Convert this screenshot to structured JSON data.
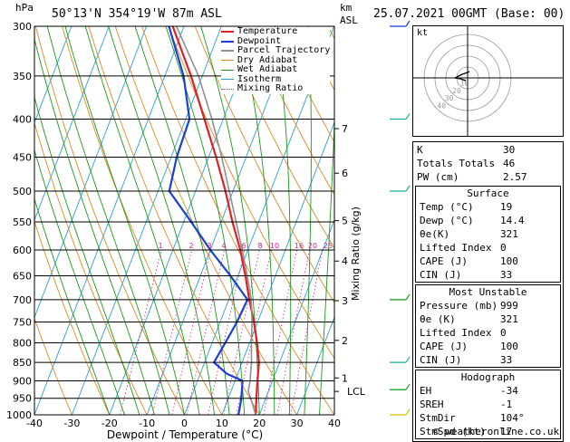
{
  "header": {
    "hpa_label": "hPa",
    "location": "50°13'N  354°19'W  87m  ASL",
    "km_label": "km",
    "asl_label": "ASL",
    "datetime": "25.07.2021  00GMT  (Base: 00)"
  },
  "chart_data": {
    "type": "line",
    "xlabel": "Dewpoint / Temperature (°C)",
    "ylabel_right": "Mixing Ratio (g/kg)",
    "xlim": [
      -40,
      40
    ],
    "x_ticks": [
      -40,
      -30,
      -20,
      -10,
      0,
      10,
      20,
      30,
      40
    ],
    "pressure_levels": [
      300,
      350,
      400,
      450,
      500,
      550,
      600,
      650,
      700,
      750,
      800,
      850,
      900,
      950,
      1000
    ],
    "km_ticks": [
      {
        "label": "7",
        "p": 412
      },
      {
        "label": "6",
        "p": 473
      },
      {
        "label": "5",
        "p": 548
      },
      {
        "label": "4",
        "p": 621
      },
      {
        "label": "3",
        "p": 702
      },
      {
        "label": "2",
        "p": 794
      },
      {
        "label": "1",
        "p": 892
      }
    ],
    "lcl": {
      "label": "LCL",
      "p": 930
    },
    "mixing_ratio_labels": [
      "1",
      "2",
      "3",
      "4",
      "6",
      "8",
      "10",
      "16",
      "20",
      "25"
    ],
    "legend": [
      "Temperature",
      "Dewpoint",
      "Parcel Trajectory",
      "Dry Adiabat",
      "Wet Adiabat",
      "Isotherm",
      "Mixing Ratio"
    ],
    "series": [
      {
        "name": "Temperature",
        "color": "#e02020",
        "points": [
          [
            300,
            -43
          ],
          [
            350,
            -33
          ],
          [
            400,
            -25
          ],
          [
            450,
            -18
          ],
          [
            500,
            -12
          ],
          [
            550,
            -7
          ],
          [
            600,
            -2
          ],
          [
            650,
            2
          ],
          [
            700,
            5.5
          ],
          [
            750,
            9
          ],
          [
            800,
            12
          ],
          [
            850,
            14.5
          ],
          [
            900,
            16
          ],
          [
            950,
            17.5
          ],
          [
            1000,
            19
          ]
        ]
      },
      {
        "name": "Dewpoint",
        "color": "#1a3fd6",
        "points": [
          [
            300,
            -44
          ],
          [
            350,
            -35
          ],
          [
            400,
            -29
          ],
          [
            450,
            -28.5
          ],
          [
            500,
            -27
          ],
          [
            550,
            -18
          ],
          [
            600,
            -10
          ],
          [
            650,
            -2
          ],
          [
            700,
            5
          ],
          [
            750,
            4.5
          ],
          [
            800,
            3.5
          ],
          [
            850,
            2.5
          ],
          [
            880,
            7
          ],
          [
            900,
            12
          ],
          [
            950,
            13.5
          ],
          [
            1000,
            14.4
          ]
        ]
      },
      {
        "name": "Parcel Trajectory",
        "color": "#909090",
        "points": [
          [
            300,
            -42
          ],
          [
            350,
            -31
          ],
          [
            400,
            -23
          ],
          [
            450,
            -16.5
          ],
          [
            500,
            -11
          ],
          [
            550,
            -6
          ],
          [
            600,
            -1.5
          ],
          [
            650,
            2.5
          ],
          [
            700,
            6
          ],
          [
            750,
            8.5
          ],
          [
            800,
            10.5
          ],
          [
            850,
            12.5
          ],
          [
            900,
            14
          ],
          [
            930,
            14.6
          ],
          [
            950,
            16
          ],
          [
            1000,
            19
          ]
        ]
      }
    ]
  },
  "hodograph": {
    "label": "kt",
    "rings": [
      "10",
      "20",
      "30",
      "40"
    ]
  },
  "indices": [
    {
      "label": "K",
      "value": "30"
    },
    {
      "label": "Totals Totals",
      "value": "46"
    },
    {
      "label": "PW (cm)",
      "value": "2.57"
    }
  ],
  "surface": {
    "title": "Surface",
    "rows": [
      {
        "label": "Temp (°C)",
        "value": "19"
      },
      {
        "label": "Dewp (°C)",
        "value": "14.4"
      },
      {
        "label": "θe(K)",
        "value": "321"
      },
      {
        "label": "Lifted Index",
        "value": "0"
      },
      {
        "label": "CAPE (J)",
        "value": "100"
      },
      {
        "label": "CIN (J)",
        "value": "33"
      }
    ]
  },
  "most_unstable": {
    "title": "Most Unstable",
    "rows": [
      {
        "label": "Pressure (mb)",
        "value": "999"
      },
      {
        "label": "θe (K)",
        "value": "321"
      },
      {
        "label": "Lifted Index",
        "value": "0"
      },
      {
        "label": "CAPE (J)",
        "value": "100"
      },
      {
        "label": "CIN (J)",
        "value": "33"
      }
    ]
  },
  "hodograph_table": {
    "title": "Hodograph",
    "rows": [
      {
        "label": "EH",
        "value": "-34"
      },
      {
        "label": "SREH",
        "value": "-1"
      },
      {
        "label": "StmDir",
        "value": "104°"
      },
      {
        "label": "StmSpd (kt)",
        "value": "17"
      }
    ]
  },
  "footer": {
    "copyright": "© weatheronline.co.uk"
  },
  "colors": {
    "temperature": "#e02020",
    "dewpoint": "#1a3fd6",
    "parcel": "#909090",
    "dry_adiabat": "#e08a20",
    "wet_adiabat": "#1a9a1a",
    "isotherm": "#2aa0d8",
    "mixing_ratio": "#d0209a",
    "wind_barb": "#18b0a0"
  }
}
